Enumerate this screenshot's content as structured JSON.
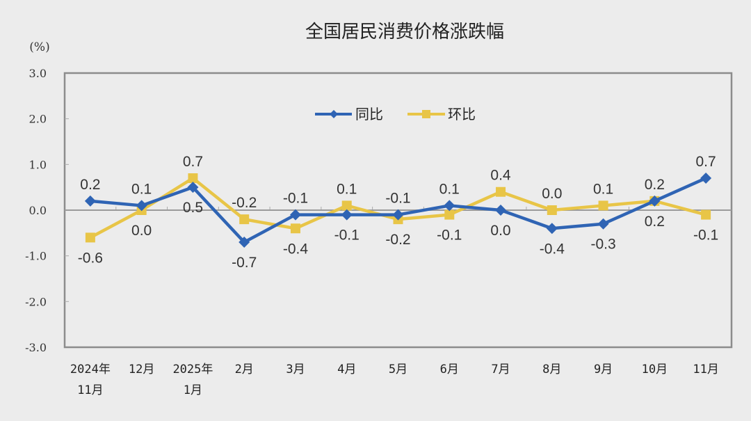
{
  "chart_data": {
    "type": "line",
    "title": "全国居民消费价格涨跌幅",
    "unit_label": "(%)",
    "xlabel": "",
    "ylabel": "(%)",
    "ylim": [
      -3.0,
      3.0
    ],
    "yticks": [
      "3.0",
      "2.0",
      "1.0",
      "0.0",
      "-1.0",
      "-2.0",
      "-3.0"
    ],
    "yticks_values": [
      3,
      2,
      1,
      0,
      -1,
      -2,
      -3
    ],
    "grid": false,
    "legend_position": "top-center inside plot",
    "categories": [
      "2024年11月",
      "12月",
      "2025年1月",
      "2月",
      "3月",
      "4月",
      "5月",
      "6月",
      "7月",
      "8月",
      "9月",
      "10月",
      "11月"
    ],
    "category_lines": [
      [
        "2024年",
        "11月"
      ],
      [
        "12月"
      ],
      [
        "2025年",
        "1月"
      ],
      [
        "2月"
      ],
      [
        "3月"
      ],
      [
        "4月"
      ],
      [
        "5月"
      ],
      [
        "6月"
      ],
      [
        "7月"
      ],
      [
        "8月"
      ],
      [
        "9月"
      ],
      [
        "10月"
      ],
      [
        "11月"
      ]
    ],
    "series": [
      {
        "name": "同比",
        "color": "#2f64b4",
        "marker": "diamond",
        "values": [
          0.2,
          0.1,
          0.5,
          -0.7,
          -0.1,
          -0.1,
          -0.1,
          0.1,
          0.0,
          -0.4,
          -0.3,
          0.2,
          0.7
        ],
        "labels": [
          "0.2",
          "0.1",
          "0.5",
          "-0.7",
          "-0.1",
          "-0.1",
          "-0.1",
          "0.1",
          "0.0",
          "-0.4",
          "-0.3",
          "0.2",
          "0.7"
        ],
        "label_pos": [
          "above",
          "above",
          "below",
          "below",
          "above",
          "below",
          "above",
          "above",
          "below",
          "below",
          "below",
          "below",
          "above"
        ]
      },
      {
        "name": "环比",
        "color": "#e8c547",
        "marker": "square",
        "values": [
          -0.6,
          0.0,
          0.7,
          -0.2,
          -0.4,
          0.1,
          -0.2,
          -0.1,
          0.4,
          0.0,
          0.1,
          0.2,
          -0.1
        ],
        "labels": [
          "-0.6",
          "0.0",
          "0.7",
          "-0.2",
          "-0.4",
          "0.1",
          "-0.2",
          "-0.1",
          "0.4",
          "0.0",
          "0.1",
          "0.2",
          "-0.1"
        ],
        "label_pos": [
          "below",
          "below",
          "above",
          "above",
          "below",
          "above",
          "below",
          "below",
          "above",
          "above",
          "above",
          "above",
          "below"
        ]
      }
    ]
  },
  "colors": {
    "background": "#ececec",
    "axis": "#8c8c8c",
    "yoy": "#2f64b4",
    "mom": "#e8c547"
  }
}
